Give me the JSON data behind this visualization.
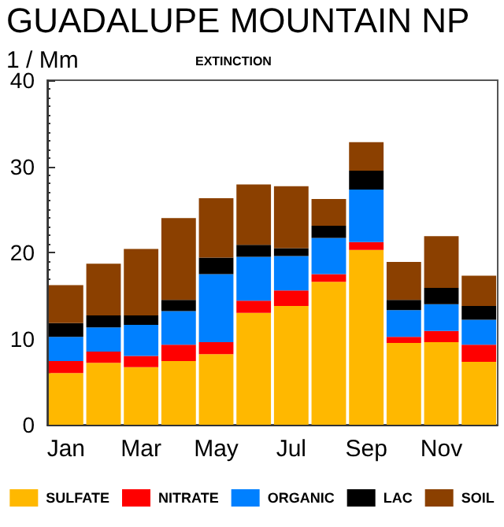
{
  "chart_data": {
    "type": "bar",
    "stacked": true,
    "title": "GUADALUPE MOUNTAIN NP",
    "subtitle": "EXTINCTION",
    "ylabel": "1 / Mm",
    "categories": [
      "Jan",
      null,
      "Mar",
      null,
      "May",
      null,
      "Jul",
      null,
      "Sep",
      null,
      "Nov",
      null
    ],
    "series": [
      {
        "name": "SULFATE",
        "color": "#ffb800",
        "values": [
          6.0,
          7.2,
          6.7,
          7.4,
          8.2,
          13.0,
          13.8,
          16.6,
          20.3,
          9.5,
          9.6,
          7.3
        ]
      },
      {
        "name": "NITRATE",
        "color": "#ff0000",
        "values": [
          1.4,
          1.3,
          1.3,
          1.9,
          1.4,
          1.4,
          1.8,
          0.9,
          0.9,
          0.7,
          1.3,
          2.0
        ]
      },
      {
        "name": "ORGANIC",
        "color": "#0080ff",
        "values": [
          2.8,
          2.8,
          3.6,
          3.9,
          7.9,
          5.1,
          4.0,
          4.2,
          6.1,
          3.1,
          3.1,
          2.9
        ]
      },
      {
        "name": "LAC",
        "color": "#000000",
        "values": [
          1.6,
          1.4,
          1.1,
          1.3,
          1.9,
          1.4,
          0.9,
          1.4,
          2.2,
          1.2,
          1.9,
          1.6
        ]
      },
      {
        "name": "SOIL",
        "color": "#8b4000",
        "values": [
          4.4,
          6.0,
          7.7,
          9.5,
          6.9,
          7.0,
          7.2,
          3.1,
          3.3,
          4.4,
          6.0,
          3.5
        ]
      }
    ],
    "ylim": [
      0,
      40
    ],
    "yticks": [
      0,
      10,
      20,
      30,
      40
    ],
    "legend": "bottom"
  }
}
